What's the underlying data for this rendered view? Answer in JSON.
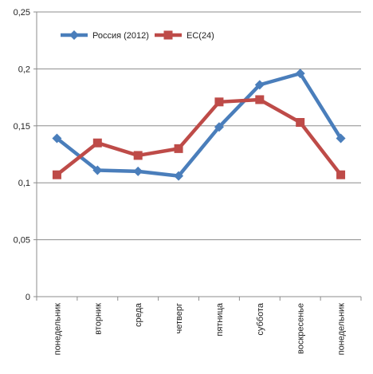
{
  "chart_data": {
    "type": "line",
    "title": "",
    "xlabel": "",
    "ylabel": "",
    "categories": [
      "понедельник",
      "вторник",
      "среда",
      "четверг",
      "пятница",
      "суббота",
      "воскресенье",
      "понедельник"
    ],
    "ylim": [
      0,
      0.25
    ],
    "yticks": [
      0,
      0.05,
      0.1,
      0.15,
      0.2,
      0.25
    ],
    "ytick_labels": [
      "0",
      "0,05",
      "0,1",
      "0,15",
      "0,2",
      "0,25"
    ],
    "grid": "horizontal",
    "legend_position": "top-left",
    "series": [
      {
        "name": "Россия (2012)",
        "values": [
          0.139,
          0.111,
          0.11,
          0.106,
          0.149,
          0.186,
          0.196,
          0.139
        ],
        "color": "#4a7ebb",
        "marker": "diamond"
      },
      {
        "name": "ЕС(24)",
        "values": [
          0.107,
          0.135,
          0.124,
          0.13,
          0.171,
          0.173,
          0.153,
          0.107
        ],
        "color": "#be4b48",
        "marker": "square"
      }
    ]
  }
}
